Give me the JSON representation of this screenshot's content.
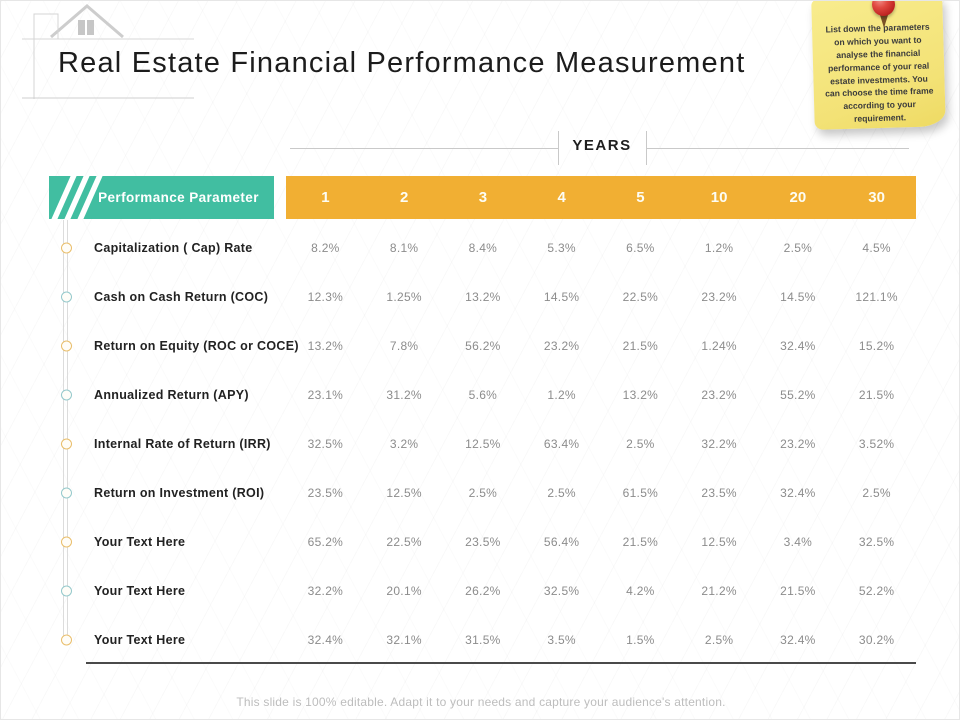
{
  "slide": {
    "title": "Real Estate Financial Performance Measurement",
    "years_axis_label": "YEARS",
    "footer": "This slide is 100% editable. Adapt it to your needs and capture your audience's attention."
  },
  "note": {
    "text": "List down the parameters on which you want to analyse the financial performance of your real estate investments. You can choose the time frame according to your requirement.",
    "bg_color": "#F3E276",
    "pin_color": "#C02320"
  },
  "table": {
    "param_header": "Performance Parameter",
    "year_columns": [
      "1",
      "2",
      "3",
      "4",
      "5",
      "10",
      "20",
      "30"
    ],
    "rows": [
      {
        "label": "Capitalization ( Cap) Rate",
        "values": [
          "8.2%",
          "8.1%",
          "8.4%",
          "5.3%",
          "6.5%",
          "1.2%",
          "2.5%",
          "4.5%"
        ]
      },
      {
        "label": "Cash on Cash Return (COC)",
        "values": [
          "12.3%",
          "1.25%",
          "13.2%",
          "14.5%",
          "22.5%",
          "23.2%",
          "14.5%",
          "121.1%"
        ]
      },
      {
        "label": "Return on Equity (ROC or COCE)",
        "values": [
          "13.2%",
          "7.8%",
          "56.2%",
          "23.2%",
          "21.5%",
          "1.24%",
          "32.4%",
          "15.2%"
        ]
      },
      {
        "label": "Annualized Return (APY)",
        "values": [
          "23.1%",
          "31.2%",
          "5.6%",
          "1.2%",
          "13.2%",
          "23.2%",
          "55.2%",
          "21.5%"
        ]
      },
      {
        "label": "Internal Rate of Return (IRR)",
        "values": [
          "32.5%",
          "3.2%",
          "12.5%",
          "63.4%",
          "2.5%",
          "32.2%",
          "23.2%",
          "3.52%"
        ]
      },
      {
        "label": "Return on Investment (ROI)",
        "values": [
          "23.5%",
          "12.5%",
          "2.5%",
          "2.5%",
          "61.5%",
          "23.5%",
          "32.4%",
          "2.5%"
        ]
      },
      {
        "label": "Your Text Here",
        "values": [
          "65.2%",
          "22.5%",
          "23.5%",
          "56.4%",
          "21.5%",
          "12.5%",
          "3.4%",
          "32.5%"
        ]
      },
      {
        "label": "Your Text Here",
        "values": [
          "32.2%",
          "20.1%",
          "26.2%",
          "32.5%",
          "4.2%",
          "21.2%",
          "21.5%",
          "52.2%"
        ]
      },
      {
        "label": "Your Text Here",
        "values": [
          "32.4%",
          "32.1%",
          "31.5%",
          "3.5%",
          "1.5%",
          "2.5%",
          "32.4%",
          "30.2%"
        ]
      }
    ]
  },
  "colors": {
    "teal_header": "#41BEA1",
    "orange_header": "#F1AF33",
    "bullet_odd": "#E9BE6B",
    "bullet_even": "#95C9CC",
    "value_text": "#8C8C8C",
    "label_text": "#222222"
  }
}
